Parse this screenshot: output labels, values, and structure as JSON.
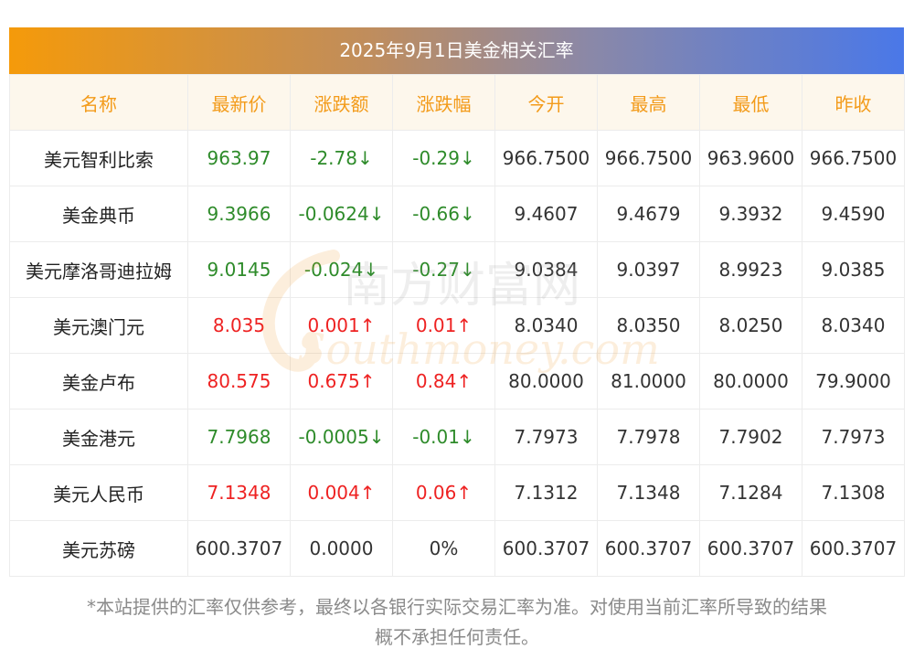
{
  "title": "2025年9月1日美金相关汇率",
  "headers": [
    "名称",
    "最新价",
    "涨跌额",
    "涨跌幅",
    "今开",
    "最高",
    "最低",
    "昨收"
  ],
  "rows": [
    {
      "name": "美元智利比索",
      "latest": "963.97",
      "change": "-2.78↓",
      "pct": "-0.29↓",
      "open": "966.7500",
      "high": "966.7500",
      "low": "963.9600",
      "prev": "966.7500",
      "trend": "down"
    },
    {
      "name": "美金典币",
      "latest": "9.3966",
      "change": "-0.0624↓",
      "pct": "-0.66↓",
      "open": "9.4607",
      "high": "9.4679",
      "low": "9.3932",
      "prev": "9.4590",
      "trend": "down"
    },
    {
      "name": "美元摩洛哥迪拉姆",
      "latest": "9.0145",
      "change": "-0.024↓",
      "pct": "-0.27↓",
      "open": "9.0384",
      "high": "9.0397",
      "low": "8.9923",
      "prev": "9.0385",
      "trend": "down"
    },
    {
      "name": "美元澳门元",
      "latest": "8.035",
      "change": "0.001↑",
      "pct": "0.01↑",
      "open": "8.0340",
      "high": "8.0350",
      "low": "8.0250",
      "prev": "8.0340",
      "trend": "up"
    },
    {
      "name": "美金卢布",
      "latest": "80.575",
      "change": "0.675↑",
      "pct": "0.84↑",
      "open": "80.0000",
      "high": "81.0000",
      "low": "80.0000",
      "prev": "79.9000",
      "trend": "up"
    },
    {
      "name": "美金港元",
      "latest": "7.7968",
      "change": "-0.0005↓",
      "pct": "-0.01↓",
      "open": "7.7973",
      "high": "7.7978",
      "low": "7.7902",
      "prev": "7.7973",
      "trend": "down"
    },
    {
      "name": "美元人民币",
      "latest": "7.1348",
      "change": "0.004↑",
      "pct": "0.06↑",
      "open": "7.1312",
      "high": "7.1348",
      "low": "7.1284",
      "prev": "7.1308",
      "trend": "up"
    },
    {
      "name": "美元苏磅",
      "latest": "600.3707",
      "change": "0.0000",
      "pct": "0%",
      "open": "600.3707",
      "high": "600.3707",
      "low": "600.3707",
      "prev": "600.3707",
      "trend": "flat"
    }
  ],
  "watermark": {
    "cn": "南方财富网",
    "en": "Southmoney.com"
  },
  "disclaimer_line1": "*本站提供的汇率仅供参考，最终以各银行实际交易汇率为准。对使用当前汇率所导致的结果",
  "disclaimer_line2": "概不承担任何责任。",
  "colors": {
    "up": "#ee2222",
    "down": "#2e8b2a",
    "header_text": "#f39b1a",
    "header_bg": "#fdf7ec"
  }
}
